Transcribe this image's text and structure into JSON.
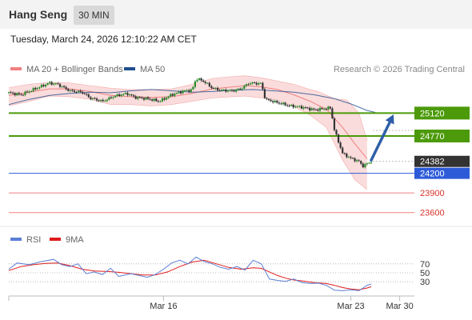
{
  "header": {
    "title": "Hang Seng",
    "timeframe": "30 MIN"
  },
  "datetime": "Tuesday, March 24, 2026 12:10:22 AM CET",
  "copyright": "Research © 2026 Trading Central",
  "colors": {
    "up": "#2a8a2a",
    "down": "#333333",
    "ma20": "#f08080",
    "band": "#f7c9c9",
    "ma50": "#1f4f8f",
    "resistance": "#4c9a0a",
    "pivot": "#2d5bd8",
    "support": "#f08080",
    "price": "#333333",
    "arrow": "#2f5fa8",
    "rsi": "#5b7fd4",
    "rsi_ma": "#e01b1b"
  },
  "chart_data": [
    {
      "type": "candlestick",
      "legend": [
        {
          "name": "MA 20 + Bollinger Bands",
          "color": "#f08080"
        },
        {
          "name": "MA 50",
          "color": "#1f4f8f"
        }
      ],
      "x_ticks": [
        {
          "label": "Mar 16",
          "x": 38
        },
        {
          "label": "Mar 23",
          "x": 84
        },
        {
          "label": "Mar 30",
          "x": 96
        }
      ],
      "x_range": [
        0,
        100
      ],
      "y_range": [
        23450,
        25650
      ],
      "levels": [
        {
          "label": "25120",
          "value": 25120,
          "kind": "resistance"
        },
        {
          "label": "24770",
          "value": 24770,
          "kind": "resistance"
        },
        {
          "label": "24382",
          "value": 24382,
          "kind": "price"
        },
        {
          "label": "24200",
          "value": 24200,
          "kind": "pivot"
        },
        {
          "label": "23900",
          "value": 23900,
          "kind": "support"
        },
        {
          "label": "23600",
          "value": 23600,
          "kind": "support"
        }
      ],
      "arrow": {
        "from": [
          89,
          24400
        ],
        "to": [
          94.5,
          25100
        ]
      },
      "anchors": [
        [
          0,
          25430
        ],
        [
          3,
          25400
        ],
        [
          6,
          25480
        ],
        [
          10,
          25580
        ],
        [
          12,
          25560
        ],
        [
          15,
          25460
        ],
        [
          18,
          25440
        ],
        [
          20,
          25350
        ],
        [
          23,
          25300
        ],
        [
          26,
          25380
        ],
        [
          29,
          25420
        ],
        [
          31,
          25360
        ],
        [
          34,
          25340
        ],
        [
          37,
          25300
        ],
        [
          40,
          25400
        ],
        [
          43,
          25460
        ],
        [
          45,
          25470
        ],
        [
          46,
          25650
        ],
        [
          48,
          25600
        ],
        [
          50,
          25500
        ],
        [
          52,
          25470
        ],
        [
          55,
          25460
        ],
        [
          57,
          25490
        ],
        [
          59,
          25580
        ],
        [
          62,
          25570
        ],
        [
          63,
          25330
        ],
        [
          66,
          25280
        ],
        [
          69,
          25230
        ],
        [
          72,
          25210
        ],
        [
          75,
          25170
        ],
        [
          78,
          25190
        ],
        [
          79,
          25200
        ],
        [
          80,
          24850
        ],
        [
          82,
          24500
        ],
        [
          84,
          24430
        ],
        [
          86,
          24380
        ],
        [
          87,
          24310
        ],
        [
          89,
          24382
        ]
      ],
      "ma20": [
        [
          0,
          25390
        ],
        [
          5,
          25440
        ],
        [
          10,
          25490
        ],
        [
          15,
          25490
        ],
        [
          20,
          25450
        ],
        [
          25,
          25390
        ],
        [
          30,
          25370
        ],
        [
          35,
          25360
        ],
        [
          40,
          25370
        ],
        [
          45,
          25420
        ],
        [
          50,
          25490
        ],
        [
          55,
          25520
        ],
        [
          58,
          25540
        ],
        [
          62,
          25520
        ],
        [
          66,
          25480
        ],
        [
          70,
          25400
        ],
        [
          74,
          25300
        ],
        [
          78,
          25180
        ],
        [
          82,
          24900
        ],
        [
          85,
          24650
        ],
        [
          88,
          24420
        ]
      ],
      "bb_upper": [
        [
          0,
          25510
        ],
        [
          5,
          25560
        ],
        [
          10,
          25590
        ],
        [
          15,
          25580
        ],
        [
          20,
          25540
        ],
        [
          25,
          25500
        ],
        [
          30,
          25480
        ],
        [
          35,
          25480
        ],
        [
          40,
          25490
        ],
        [
          45,
          25560
        ],
        [
          50,
          25650
        ],
        [
          55,
          25680
        ],
        [
          58,
          25690
        ],
        [
          62,
          25660
        ],
        [
          66,
          25610
        ],
        [
          70,
          25560
        ],
        [
          74,
          25480
        ],
        [
          76,
          25450
        ],
        [
          80,
          25340
        ],
        [
          83,
          25320
        ],
        [
          86,
          25120
        ],
        [
          88,
          24700
        ]
      ],
      "bb_lower": [
        [
          0,
          25230
        ],
        [
          5,
          25300
        ],
        [
          10,
          25380
        ],
        [
          15,
          25370
        ],
        [
          20,
          25330
        ],
        [
          25,
          25250
        ],
        [
          30,
          25250
        ],
        [
          35,
          25230
        ],
        [
          40,
          25250
        ],
        [
          45,
          25300
        ],
        [
          50,
          25350
        ],
        [
          55,
          25370
        ],
        [
          58,
          25380
        ],
        [
          62,
          25350
        ],
        [
          66,
          25320
        ],
        [
          70,
          25220
        ],
        [
          74,
          25090
        ],
        [
          78,
          24900
        ],
        [
          82,
          24400
        ],
        [
          85,
          24100
        ],
        [
          88,
          23950
        ]
      ],
      "ma50": [
        [
          0,
          25250
        ],
        [
          5,
          25330
        ],
        [
          10,
          25390
        ],
        [
          15,
          25420
        ],
        [
          20,
          25440
        ],
        [
          25,
          25430
        ],
        [
          30,
          25460
        ],
        [
          35,
          25480
        ],
        [
          40,
          25460
        ],
        [
          45,
          25440
        ],
        [
          50,
          25450
        ],
        [
          55,
          25470
        ],
        [
          60,
          25480
        ],
        [
          65,
          25460
        ],
        [
          70,
          25440
        ],
        [
          75,
          25400
        ],
        [
          80,
          25340
        ],
        [
          84,
          25260
        ],
        [
          88,
          25160
        ],
        [
          90,
          25130
        ]
      ]
    },
    {
      "type": "line",
      "legend": [
        {
          "name": "RSI",
          "color": "#5b7fd4"
        },
        {
          "name": "9MA",
          "color": "#e01b1b"
        }
      ],
      "y_range": [
        0,
        100
      ],
      "levels": [
        {
          "label": "70",
          "value": 70
        },
        {
          "label": "50",
          "value": 50
        },
        {
          "label": "30",
          "value": 30
        }
      ],
      "series": [
        {
          "name": "RSI",
          "points": [
            [
              0,
              58
            ],
            [
              2,
              72
            ],
            [
              5,
              68
            ],
            [
              8,
              75
            ],
            [
              11,
              80
            ],
            [
              13,
              68
            ],
            [
              15,
              64
            ],
            [
              17,
              70
            ],
            [
              19,
              48
            ],
            [
              21,
              52
            ],
            [
              23,
              46
            ],
            [
              25,
              60
            ],
            [
              27,
              42
            ],
            [
              30,
              48
            ],
            [
              32,
              44
            ],
            [
              34,
              40
            ],
            [
              36,
              46
            ],
            [
              38,
              58
            ],
            [
              40,
              72
            ],
            [
              42,
              78
            ],
            [
              44,
              70
            ],
            [
              46,
              85
            ],
            [
              48,
              75
            ],
            [
              50,
              70
            ],
            [
              52,
              62
            ],
            [
              54,
              58
            ],
            [
              56,
              64
            ],
            [
              58,
              56
            ],
            [
              60,
              78
            ],
            [
              62,
              70
            ],
            [
              64,
              36
            ],
            [
              66,
              33
            ],
            [
              68,
              31
            ],
            [
              70,
              36
            ],
            [
              72,
              28
            ],
            [
              74,
              26
            ],
            [
              76,
              27
            ],
            [
              78,
              22
            ],
            [
              80,
              11
            ],
            [
              82,
              10
            ],
            [
              84,
              12
            ],
            [
              86,
              10
            ],
            [
              88,
              22
            ],
            [
              89,
              25
            ]
          ]
        },
        {
          "name": "9MA",
          "points": [
            [
              0,
              55
            ],
            [
              3,
              64
            ],
            [
              6,
              68
            ],
            [
              9,
              71
            ],
            [
              12,
              72
            ],
            [
              15,
              66
            ],
            [
              18,
              58
            ],
            [
              21,
              54
            ],
            [
              24,
              53
            ],
            [
              27,
              51
            ],
            [
              30,
              48
            ],
            [
              33,
              45
            ],
            [
              36,
              45
            ],
            [
              39,
              52
            ],
            [
              42,
              64
            ],
            [
              45,
              74
            ],
            [
              48,
              78
            ],
            [
              51,
              70
            ],
            [
              54,
              62
            ],
            [
              57,
              58
            ],
            [
              60,
              61
            ],
            [
              62,
              60
            ],
            [
              64,
              52
            ],
            [
              66,
              44
            ],
            [
              68,
              38
            ],
            [
              70,
              34
            ],
            [
              72,
              32
            ],
            [
              75,
              28
            ],
            [
              78,
              26
            ],
            [
              80,
              22
            ],
            [
              82,
              17
            ],
            [
              84,
              14
            ],
            [
              86,
              12
            ],
            [
              88,
              16
            ],
            [
              89,
              19
            ]
          ]
        }
      ]
    }
  ]
}
